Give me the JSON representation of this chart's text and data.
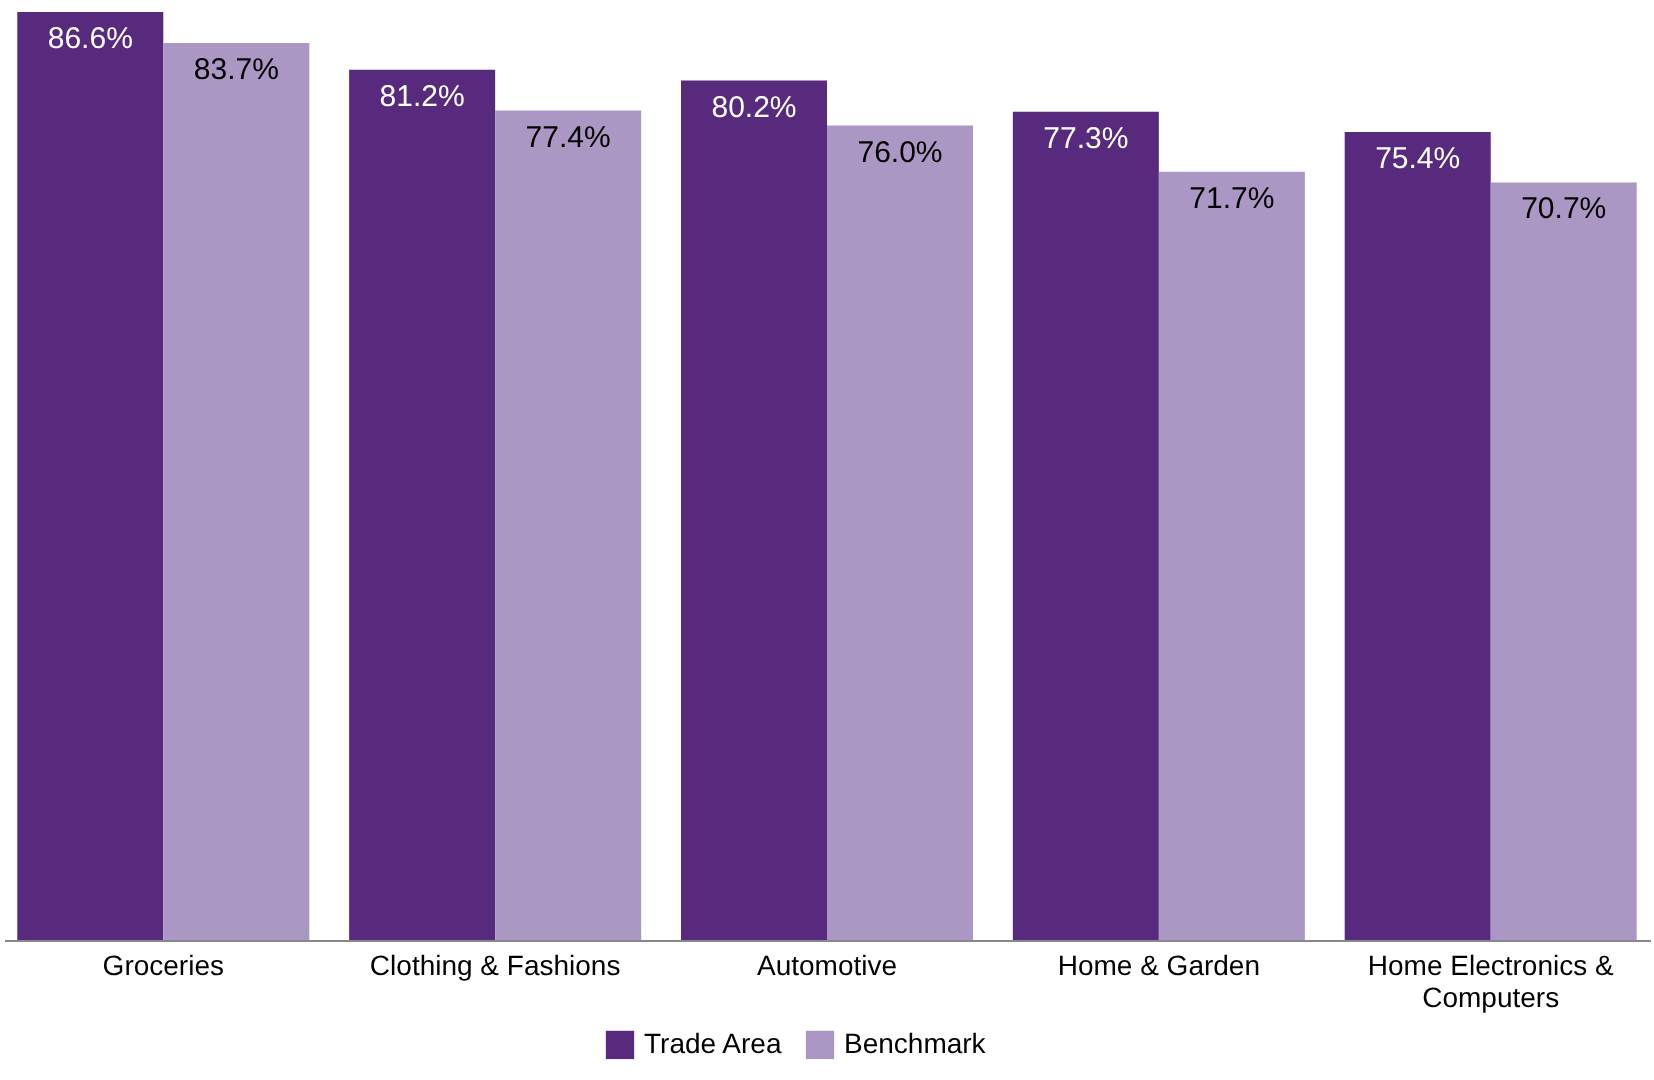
{
  "chart_data": {
    "type": "bar",
    "categories": [
      "Groceries",
      "Clothing & Fashions",
      "Automotive",
      "Home & Garden",
      "Home Electronics & Computers"
    ],
    "series": [
      {
        "name": "Trade Area",
        "color": "#572a7e",
        "values": [
          86.6,
          81.2,
          80.2,
          77.3,
          75.4
        ],
        "value_labels": [
          "86.6%",
          "81.2%",
          "80.2%",
          "77.3%",
          "75.4%"
        ]
      },
      {
        "name": "Benchmark",
        "color": "#ab97c4",
        "values": [
          83.7,
          77.4,
          76.0,
          71.7,
          70.7
        ],
        "value_labels": [
          "83.7%",
          "77.4%",
          "76.0%",
          "71.7%",
          "70.7%"
        ]
      }
    ],
    "legend": "bottom",
    "grid": false
  }
}
